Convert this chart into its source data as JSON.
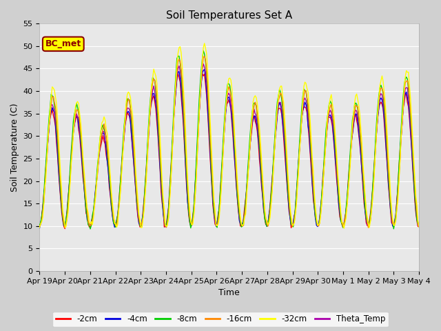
{
  "title": "Soil Temperatures Set A",
  "xlabel": "Time",
  "ylabel": "Soil Temperature (C)",
  "ylim": [
    0,
    55
  ],
  "yticks": [
    0,
    5,
    10,
    15,
    20,
    25,
    30,
    35,
    40,
    45,
    50,
    55
  ],
  "series_colors": {
    "m2cm": "#ff0000",
    "m4cm": "#0000dd",
    "m8cm": "#00cc00",
    "m16cm": "#ff8800",
    "m32cm": "#ffff00",
    "theta": "#aa00aa"
  },
  "tick_labels": [
    "Apr 19",
    "Apr 20",
    "Apr 21",
    "Apr 22",
    "Apr 23",
    "Apr 24",
    "Apr 25",
    "Apr 26",
    "Apr 27",
    "Apr 28",
    "Apr 29",
    "Apr 30",
    "May 1",
    "May 2",
    "May 3",
    "May 4"
  ],
  "legend_label": "BC_met",
  "fig_facecolor": "#d0d0d0",
  "ax_facecolor": "#e8e8e8",
  "grid_color": "#ffffff",
  "legend_items": [
    "-2cm",
    "-4cm",
    "-8cm",
    "-16cm",
    "-32cm",
    "Theta_Temp"
  ],
  "legend_colors": [
    "#ff0000",
    "#0000dd",
    "#00cc00",
    "#ff8800",
    "#ffff00",
    "#aa00aa"
  ],
  "n_days": 15,
  "seed": 123
}
